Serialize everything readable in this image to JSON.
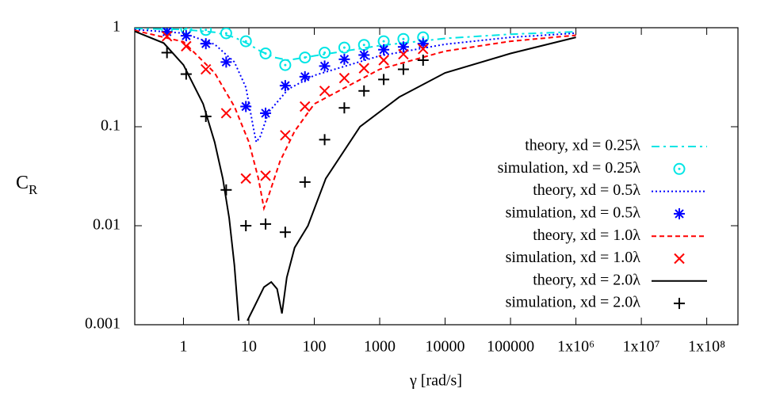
{
  "chart_data": {
    "type": "line-scatter",
    "xlabel": "γ [rad/s]",
    "ylabel": {
      "text": "C",
      "subscript": "R"
    },
    "xscale": "log",
    "yscale": "log",
    "xlim": [
      0.18,
      300000000
    ],
    "ylim": [
      0.001,
      1
    ],
    "xticks": [
      1,
      10,
      100,
      1000,
      10000,
      100000,
      {
        "value": 1000000,
        "label": "1x10⁶"
      },
      {
        "value": 10000000,
        "label": "1x10⁷"
      },
      {
        "value": 100000000,
        "label": "1x10⁸"
      }
    ],
    "yticks": [
      0.001,
      0.01,
      0.1,
      1
    ],
    "legend": "right",
    "series": [
      {
        "name": "theory, xd = 0.25λ",
        "color": "#00e5e5",
        "style": "line",
        "dash": "dash-dot",
        "x": [
          0.18,
          1,
          3,
          6,
          10,
          15,
          25,
          40,
          100,
          1000,
          10000,
          100000,
          1000000
        ],
        "values": [
          0.98,
          0.96,
          0.9,
          0.8,
          0.68,
          0.58,
          0.5,
          0.47,
          0.52,
          0.66,
          0.78,
          0.86,
          0.91
        ]
      },
      {
        "name": "simulation, xd = 0.25λ",
        "color": "#00e5e5",
        "style": "points",
        "marker": "circle",
        "x": [
          0.56,
          1.1,
          2.2,
          4.5,
          9,
          18,
          36,
          72,
          144,
          288,
          576,
          1152,
          2304,
          4608
        ],
        "values": [
          0.97,
          0.98,
          0.95,
          0.88,
          0.73,
          0.55,
          0.42,
          0.5,
          0.56,
          0.63,
          0.67,
          0.73,
          0.77,
          0.8
        ]
      },
      {
        "name": "theory, xd = 0.5λ",
        "color": "#0000ff",
        "style": "line",
        "dash": "dot",
        "x": [
          0.18,
          1,
          3,
          6,
          9,
          12,
          13,
          15,
          20,
          40,
          100,
          1000,
          10000,
          100000,
          1000000
        ],
        "values": [
          0.96,
          0.88,
          0.68,
          0.45,
          0.25,
          0.09,
          0.07,
          0.08,
          0.14,
          0.24,
          0.33,
          0.52,
          0.68,
          0.8,
          0.88
        ]
      },
      {
        "name": "simulation, xd = 0.5λ",
        "color": "#0000ff",
        "style": "points",
        "marker": "star",
        "x": [
          0.56,
          1.1,
          2.2,
          4.5,
          9,
          18,
          36,
          72,
          144,
          288,
          576,
          1152,
          2304,
          4608
        ],
        "values": [
          0.91,
          0.83,
          0.69,
          0.45,
          0.16,
          0.137,
          0.26,
          0.32,
          0.41,
          0.48,
          0.53,
          0.6,
          0.64,
          0.69
        ]
      },
      {
        "name": "theory, xd = 1.0λ",
        "color": "#ff0000",
        "style": "line",
        "dash": "dash",
        "x": [
          0.18,
          1,
          3,
          6,
          10,
          14,
          17,
          20,
          30,
          50,
          100,
          1000,
          10000,
          100000,
          1000000
        ],
        "values": [
          0.94,
          0.72,
          0.35,
          0.16,
          0.07,
          0.03,
          0.015,
          0.02,
          0.045,
          0.09,
          0.17,
          0.38,
          0.58,
          0.73,
          0.84
        ]
      },
      {
        "name": "simulation, xd = 1.0λ",
        "color": "#ff0000",
        "style": "points",
        "marker": "x",
        "x": [
          0.56,
          1.1,
          2.2,
          4.5,
          9,
          18,
          36,
          72,
          144,
          288,
          576,
          1152,
          2304,
          4608
        ],
        "values": [
          0.82,
          0.65,
          0.38,
          0.137,
          0.03,
          0.032,
          0.082,
          0.16,
          0.23,
          0.31,
          0.39,
          0.47,
          0.54,
          0.61
        ]
      },
      {
        "name": "theory, xd = 2.0λ",
        "color": "#000000",
        "style": "line",
        "dash": "solid",
        "x": [
          0.18,
          0.5,
          1,
          2,
          3,
          4,
          5,
          6,
          7,
          8,
          9.5,
          12,
          17,
          22,
          27,
          32,
          38,
          50,
          80,
          150,
          500,
          2000,
          10000,
          100000,
          1000000
        ],
        "values": [
          0.92,
          0.7,
          0.42,
          0.17,
          0.07,
          0.03,
          0.012,
          0.004,
          0.0011,
          null,
          0.0011,
          0.0015,
          0.0024,
          0.0027,
          0.0023,
          0.0013,
          0.003,
          0.006,
          0.01,
          0.03,
          0.1,
          0.2,
          0.35,
          0.55,
          0.8
        ]
      },
      {
        "name": "simulation, xd = 2.0λ",
        "color": "#000000",
        "style": "points",
        "marker": "plus",
        "x": [
          0.56,
          1.1,
          2.2,
          4.5,
          9,
          18,
          36,
          72,
          144,
          288,
          576,
          1152,
          2304,
          4608
        ],
        "values": [
          0.56,
          0.34,
          0.127,
          0.023,
          0.01,
          0.0104,
          0.0086,
          0.0276,
          0.074,
          0.155,
          0.23,
          0.3,
          0.38,
          0.47
        ]
      }
    ]
  }
}
